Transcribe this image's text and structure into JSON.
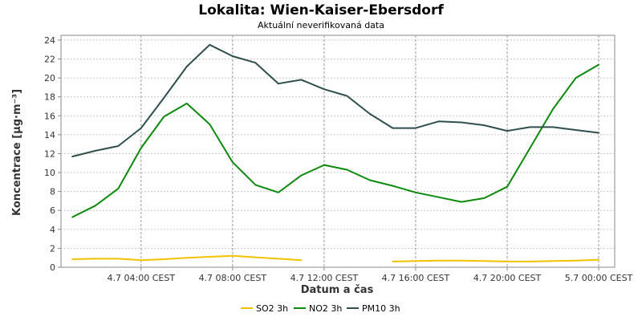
{
  "chart_data": {
    "type": "line",
    "title": "Lokalita: Wien-Kaiser-Ebersdorf",
    "subtitle": "Aktuální neverifikovaná data",
    "xlabel": "Datum a čas",
    "ylabel": "Koncentrace [µg·m⁻³]",
    "ylim": [
      0,
      24.5
    ],
    "yticks": [
      0,
      2,
      4,
      6,
      8,
      10,
      12,
      14,
      16,
      18,
      20,
      22,
      24
    ],
    "x_range_hours": [
      0.5,
      24.7
    ],
    "xticks": [
      {
        "hour": 4,
        "label": "4.7 04:00 CEST"
      },
      {
        "hour": 8,
        "label": "4.7 08:00 CEST"
      },
      {
        "hour": 12,
        "label": "4.7 12:00 CEST"
      },
      {
        "hour": 16,
        "label": "4.7 16:00 CEST"
      },
      {
        "hour": 20,
        "label": "4.7 20:00 CEST"
      },
      {
        "hour": 24,
        "label": "5.7 00:00 CEST"
      }
    ],
    "x_hours": [
      1,
      2,
      3,
      4,
      5,
      6,
      7,
      8,
      9,
      10,
      11,
      12,
      13,
      14,
      15,
      16,
      17,
      18,
      19,
      20,
      21,
      22,
      23,
      24
    ],
    "grid": true,
    "legend_position": "bottom-center",
    "series": [
      {
        "name": "SO2 3h",
        "color": "#f2c200",
        "values": [
          0.85,
          0.9,
          0.9,
          0.75,
          0.85,
          1.0,
          1.1,
          1.2,
          1.05,
          0.9,
          0.75,
          null,
          null,
          null,
          0.6,
          0.65,
          0.7,
          0.7,
          0.65,
          0.6,
          0.6,
          0.65,
          0.7,
          0.8
        ]
      },
      {
        "name": "NO2 3h",
        "color": "#0b8a0b",
        "values": [
          5.3,
          6.5,
          8.3,
          12.6,
          15.9,
          17.3,
          15.1,
          11.1,
          8.7,
          7.9,
          9.7,
          10.8,
          10.3,
          9.2,
          8.6,
          7.9,
          7.4,
          6.9,
          7.3,
          8.5,
          12.6,
          16.7,
          20.0,
          21.4
        ]
      },
      {
        "name": "PM10 3h",
        "color": "#2f4f4f",
        "values": [
          11.7,
          12.3,
          12.8,
          14.7,
          17.9,
          21.2,
          23.5,
          22.3,
          21.6,
          19.4,
          19.8,
          18.8,
          18.1,
          16.2,
          14.7,
          14.7,
          15.4,
          15.3,
          15.0,
          14.4,
          14.8,
          14.8,
          14.5,
          14.2
        ]
      }
    ]
  }
}
